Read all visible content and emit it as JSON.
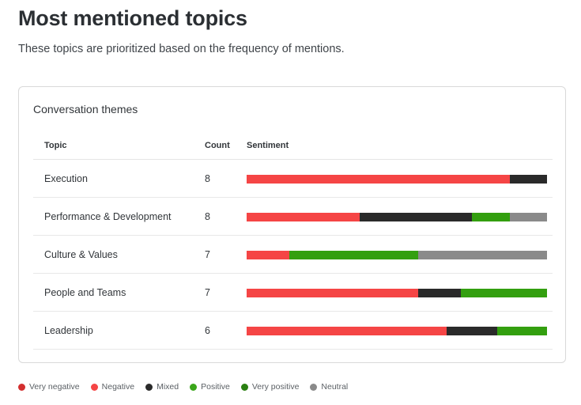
{
  "header": {
    "title": "Most mentioned topics",
    "subtitle": "These topics are prioritized based on the frequency of mentions."
  },
  "card": {
    "title": "Conversation themes",
    "columns": {
      "topic": "Topic",
      "count": "Count",
      "sentiment": "Sentiment"
    }
  },
  "colors": {
    "very_negative": "#d32f2f",
    "negative": "#f54545",
    "mixed": "#2a2a2a",
    "positive": "#339f0f",
    "very_positive": "#2b8012",
    "neutral": "#8a8a8a"
  },
  "legend": [
    {
      "key": "very_negative",
      "label": "Very negative",
      "color": "#d32f2f"
    },
    {
      "key": "negative",
      "label": "Negative",
      "color": "#f54545"
    },
    {
      "key": "mixed",
      "label": "Mixed",
      "color": "#2a2a2a"
    },
    {
      "key": "positive",
      "label": "Positive",
      "color": "#3aa61a"
    },
    {
      "key": "very_positive",
      "label": "Very positive",
      "color": "#2b8012"
    },
    {
      "key": "neutral",
      "label": "Neutral",
      "color": "#8a8a8a"
    }
  ],
  "rows": [
    {
      "topic": "Execution",
      "count": "8",
      "segments": [
        {
          "key": "negative",
          "value": 7
        },
        {
          "key": "mixed",
          "value": 1
        }
      ]
    },
    {
      "topic": "Performance & Development",
      "count": "8",
      "segments": [
        {
          "key": "negative",
          "value": 3
        },
        {
          "key": "mixed",
          "value": 3
        },
        {
          "key": "positive",
          "value": 1
        },
        {
          "key": "neutral",
          "value": 1
        }
      ]
    },
    {
      "topic": "Culture & Values",
      "count": "7",
      "segments": [
        {
          "key": "negative",
          "value": 1
        },
        {
          "key": "positive",
          "value": 3
        },
        {
          "key": "neutral",
          "value": 3
        }
      ]
    },
    {
      "topic": "People and Teams",
      "count": "7",
      "segments": [
        {
          "key": "negative",
          "value": 4
        },
        {
          "key": "mixed",
          "value": 1
        },
        {
          "key": "positive",
          "value": 2
        }
      ]
    },
    {
      "topic": "Leadership",
      "count": "6",
      "segments": [
        {
          "key": "negative",
          "value": 4
        },
        {
          "key": "mixed",
          "value": 1
        },
        {
          "key": "positive",
          "value": 1
        }
      ]
    }
  ],
  "chart_data": {
    "type": "bar",
    "orientation": "horizontal",
    "stacked": true,
    "normalized": true,
    "title": "Conversation themes",
    "categories": [
      "Execution",
      "Performance & Development",
      "Culture & Values",
      "People and Teams",
      "Leadership"
    ],
    "counts": [
      8,
      8,
      7,
      7,
      6
    ],
    "series": [
      {
        "name": "Very negative",
        "values": [
          0,
          0,
          0,
          0,
          0
        ]
      },
      {
        "name": "Negative",
        "values": [
          7,
          3,
          1,
          4,
          4
        ]
      },
      {
        "name": "Mixed",
        "values": [
          1,
          3,
          0,
          1,
          1
        ]
      },
      {
        "name": "Positive",
        "values": [
          0,
          1,
          3,
          2,
          1
        ]
      },
      {
        "name": "Very positive",
        "values": [
          0,
          0,
          0,
          0,
          0
        ]
      },
      {
        "name": "Neutral",
        "values": [
          0,
          1,
          3,
          0,
          0
        ]
      }
    ],
    "legend_position": "bottom",
    "grid": false
  }
}
